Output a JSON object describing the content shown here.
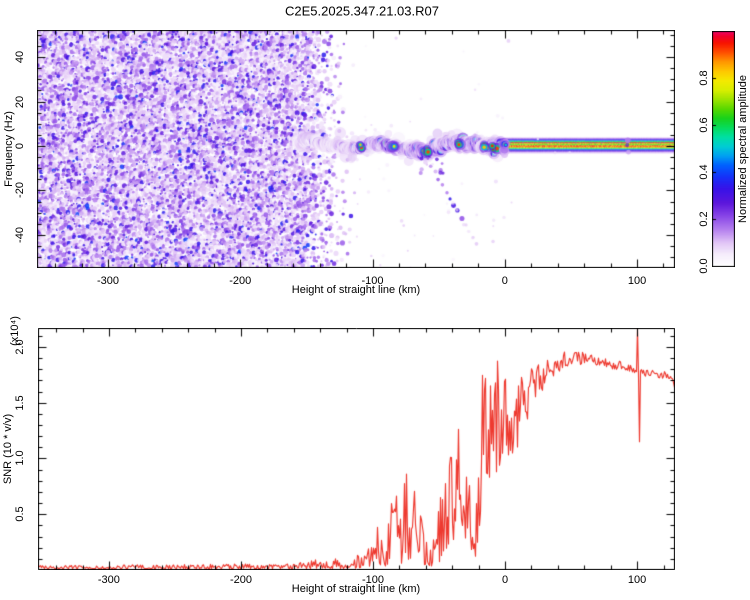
{
  "title": "C2E5.2025.347.21.03.R07",
  "colors": {
    "snr_line": "#ee3a30",
    "axis": "#000000",
    "background": "#ffffff"
  },
  "chart_data": [
    {
      "type": "heatmap",
      "name": "doppler-spectrogram",
      "xlabel": "Height of straight line (km)",
      "ylabel": "Frequency (Hz)",
      "xlim": [
        -353.7,
        128.7
      ],
      "ylim": [
        -54.9,
        52.2
      ],
      "xticks": [
        -300,
        -200,
        -100,
        0,
        100
      ],
      "xtick_labels": [
        "-300",
        "-200",
        "-100",
        "0",
        "100"
      ],
      "x_minor_step": 20,
      "yticks": [
        -40,
        -20,
        0,
        20,
        40
      ],
      "ytick_labels": [
        "-40",
        "-20",
        "0",
        "20",
        "40"
      ],
      "y_minor_step": 5,
      "grid": false,
      "colorbar": {
        "label": "Normalized spectral amplitude",
        "ticks": [
          0,
          0.2,
          0.4,
          0.6,
          0.8
        ],
        "tick_labels": [
          "0.0",
          "0.2",
          "0.4",
          "0.6",
          "0.8"
        ],
        "range": [
          0,
          1
        ],
        "stops": [
          [
            0.0,
            "#ffffff"
          ],
          [
            0.05,
            "#f6eefc"
          ],
          [
            0.1,
            "#e2c6f6"
          ],
          [
            0.16,
            "#b27cee"
          ],
          [
            0.22,
            "#8440e6"
          ],
          [
            0.27,
            "#5c16dc"
          ],
          [
            0.33,
            "#3812e8"
          ],
          [
            0.38,
            "#1630f8"
          ],
          [
            0.43,
            "#0060ff"
          ],
          [
            0.47,
            "#00a0f2"
          ],
          [
            0.51,
            "#00ccd4"
          ],
          [
            0.55,
            "#00e0a4"
          ],
          [
            0.59,
            "#06dc5c"
          ],
          [
            0.63,
            "#18d21c"
          ],
          [
            0.67,
            "#58d800"
          ],
          [
            0.71,
            "#9ce400"
          ],
          [
            0.75,
            "#d8ee00"
          ],
          [
            0.79,
            "#f4ea00"
          ],
          [
            0.83,
            "#fec800"
          ],
          [
            0.87,
            "#ff9800"
          ],
          [
            0.91,
            "#ff5000"
          ],
          [
            0.95,
            "#f81400"
          ],
          [
            0.98,
            "#f0002c"
          ],
          [
            1.0,
            "#ee0468"
          ]
        ]
      },
      "features": {
        "noise_field": {
          "x_range": [
            -353.7,
            -155
          ],
          "fade_out_x": [
            -155,
            -112
          ],
          "freq_range": [
            -54.9,
            52.2
          ],
          "amplitude_range": [
            0.03,
            0.38
          ]
        },
        "echo_band": {
          "x_range": [
            -158,
            -3
          ],
          "center_freq_hz": 0,
          "wander_hz": 2.8,
          "width_hz": 5,
          "amplitude_range": [
            0.2,
            1.0
          ],
          "hot_spots_km": [
            -108,
            -85,
            -60,
            -34,
            -15,
            -8
          ]
        },
        "carrier_line": {
          "x_range": [
            -3,
            128.7
          ],
          "profile_freq_amp": [
            [
              3.6,
              0.1
            ],
            [
              3.15,
              0.2
            ],
            [
              2.7,
              0.32
            ],
            [
              2.25,
              0.48
            ],
            [
              1.8,
              0.62
            ],
            [
              1.35,
              0.97
            ],
            [
              0.9,
              0.72
            ],
            [
              0.45,
              0.66
            ],
            [
              0.0,
              0.9
            ],
            [
              -0.45,
              0.9
            ],
            [
              -0.9,
              0.72
            ],
            [
              -1.35,
              0.55
            ],
            [
              -1.8,
              0.38
            ],
            [
              -2.25,
              0.27
            ],
            [
              -2.7,
              0.17
            ],
            [
              -3.15,
              0.08
            ]
          ],
          "blob_clusters_km": [
            -1,
            93
          ]
        },
        "descending_trail": {
          "from": [
            -58,
            -6
          ],
          "to": [
            -22,
            -44
          ],
          "amplitude_range": [
            0.06,
            0.45
          ]
        }
      }
    },
    {
      "type": "line",
      "name": "snr-profile",
      "xlabel": "Height of straight line (km)",
      "ylabel": "SNR (10 * v/v)",
      "scale_note": "(x10⁴)",
      "xlim": [
        -353.7,
        128.7
      ],
      "ylim": [
        0,
        2.17
      ],
      "xticks": [
        -300,
        -200,
        -100,
        0,
        100
      ],
      "xtick_labels": [
        "-300",
        "-200",
        "-100",
        "0",
        "100"
      ],
      "x_minor_step": 20,
      "yticks": [
        0.5,
        1.0,
        1.5,
        2.0
      ],
      "ytick_labels": [
        "0.5",
        "1.0",
        "1.5",
        "2.0"
      ],
      "y_minor_step": 0.1,
      "series": [
        {
          "name": "SNR",
          "color": "#ee3a30",
          "envelope_km_low_high_spike": [
            [
              -354,
              0.005,
              0.04,
              1.3
            ],
            [
              -300,
              0.005,
              0.045,
              1.3
            ],
            [
              -240,
              0.006,
              0.05,
              1.3
            ],
            [
              -190,
              0.007,
              0.055,
              1.3
            ],
            [
              -160,
              0.008,
              0.06,
              1.3
            ],
            [
              -140,
              0.01,
              0.1,
              1.6
            ],
            [
              -126,
              0.012,
              0.1,
              1.6
            ],
            [
              -118,
              0.012,
              0.08,
              1.6
            ],
            [
              -110,
              0.015,
              0.16,
              2.0
            ],
            [
              -102,
              0.02,
              0.3,
              2.2
            ],
            [
              -95,
              0.03,
              0.45,
              2.2
            ],
            [
              -88,
              0.04,
              0.58,
              2.3
            ],
            [
              -81,
              0.05,
              0.72,
              2.3
            ],
            [
              -75,
              0.06,
              0.88,
              2.3
            ],
            [
              -69,
              0.07,
              0.94,
              2.3
            ],
            [
              -64,
              0.06,
              0.72,
              2.2
            ],
            [
              -58,
              0.03,
              0.4,
              2.0
            ],
            [
              -53,
              0.04,
              0.3,
              2.0
            ],
            [
              -48,
              0.08,
              0.75,
              2.1
            ],
            [
              -44,
              0.18,
              1.18,
              2.0
            ],
            [
              -40,
              0.25,
              1.42,
              1.9
            ],
            [
              -36,
              0.3,
              1.55,
              1.9
            ],
            [
              -34,
              0.32,
              1.78,
              2.0
            ],
            [
              -31,
              0.3,
              1.42,
              1.9
            ],
            [
              -28,
              0.22,
              1.15,
              1.9
            ],
            [
              -25,
              0.14,
              0.85,
              1.8
            ],
            [
              -22,
              0.12,
              0.55,
              1.8
            ],
            [
              -20,
              0.25,
              1.05,
              1.7
            ],
            [
              -18,
              0.55,
              1.95,
              1.5
            ],
            [
              -16,
              0.7,
              2.16,
              1.5
            ],
            [
              -14,
              0.78,
              2.05,
              1.5
            ],
            [
              -12,
              0.8,
              1.88,
              1.4
            ],
            [
              -9,
              0.85,
              1.75,
              1.3
            ],
            [
              -6,
              0.88,
              1.9,
              1.3
            ],
            [
              -3,
              0.92,
              1.7,
              1.25
            ],
            [
              0,
              0.98,
              1.75,
              1.2
            ],
            [
              3,
              0.95,
              1.62,
              1.15
            ],
            [
              6,
              0.85,
              1.55,
              1.15
            ],
            [
              9,
              1.05,
              1.7,
              1.1
            ],
            [
              12,
              1.2,
              1.78,
              1.05
            ],
            [
              15,
              1.28,
              1.85,
              1.05
            ],
            [
              18,
              1.38,
              1.8,
              1.0
            ],
            [
              22,
              1.48,
              1.82,
              1.0
            ],
            [
              26,
              1.55,
              1.85,
              1.0
            ],
            [
              30,
              1.63,
              1.88,
              1.0
            ],
            [
              35,
              1.7,
              1.9,
              1.0
            ],
            [
              40,
              1.77,
              1.93,
              1.0
            ],
            [
              45,
              1.8,
              1.96,
              1.0
            ],
            [
              50,
              1.82,
              1.95,
              1.0
            ],
            [
              55,
              1.83,
              1.96,
              1.0
            ],
            [
              60,
              1.84,
              1.95,
              1.0
            ],
            [
              65,
              1.83,
              1.93,
              1.0
            ],
            [
              70,
              1.82,
              1.91,
              1.0
            ],
            [
              76,
              1.81,
              1.9,
              1.0
            ],
            [
              82,
              1.8,
              1.88,
              1.0
            ],
            [
              88,
              1.78,
              1.87,
              1.0
            ],
            [
              94,
              1.77,
              1.85,
              1.0
            ],
            [
              98,
              1.76,
              1.84,
              1.0
            ],
            [
              102,
              1.72,
              1.8,
              1.0
            ],
            [
              108,
              1.73,
              1.8,
              1.0
            ],
            [
              115,
              1.72,
              1.79,
              1.0
            ],
            [
              122,
              1.71,
              1.78,
              1.0
            ],
            [
              127,
              1.68,
              1.76,
              1.0
            ],
            [
              129,
              1.58,
              1.72,
              1.0
            ]
          ],
          "forced_spikes": [
            [
              100,
              2.16
            ],
            [
              101.5,
              1.15
            ]
          ]
        }
      ]
    }
  ]
}
